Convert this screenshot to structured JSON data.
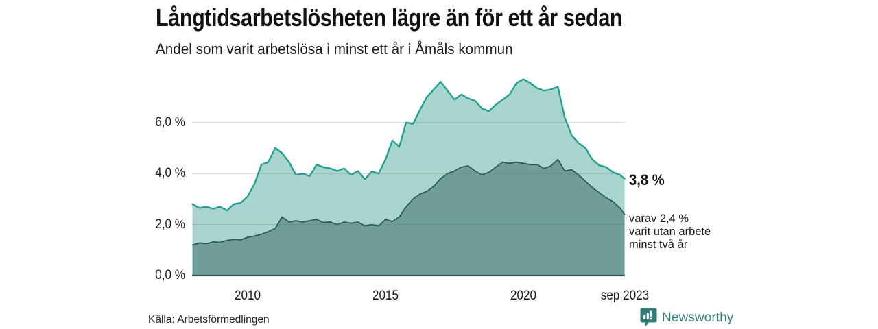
{
  "header": {
    "title": "Långtidsarbetslösheten lägre än för ett år sedan",
    "subtitle": "Andel som varit arbetslösa i minst ett år i Åmåls kommun"
  },
  "chart_data": {
    "type": "area",
    "title": "Långtidsarbetslösheten lägre än för ett år sedan",
    "subtitle": "Andel som varit arbetslösa i minst ett år i Åmåls kommun",
    "xlabel": "",
    "ylabel": "",
    "ylim": [
      0,
      7.8
    ],
    "grid": "horizontal",
    "legend_position": "none",
    "x_unit": "year",
    "x": [
      2008,
      2008.25,
      2008.5,
      2008.75,
      2009,
      2009.25,
      2009.5,
      2009.75,
      2010,
      2010.25,
      2010.5,
      2010.75,
      2011,
      2011.25,
      2011.5,
      2011.75,
      2012,
      2012.25,
      2012.5,
      2012.75,
      2013,
      2013.25,
      2013.5,
      2013.75,
      2014,
      2014.25,
      2014.5,
      2014.75,
      2015,
      2015.25,
      2015.5,
      2015.75,
      2016,
      2016.25,
      2016.5,
      2016.75,
      2017,
      2017.25,
      2017.5,
      2017.75,
      2018,
      2018.25,
      2018.5,
      2018.75,
      2019,
      2019.25,
      2019.5,
      2019.75,
      2020,
      2020.25,
      2020.5,
      2020.75,
      2021,
      2021.25,
      2021.5,
      2021.75,
      2022,
      2022.25,
      2022.5,
      2022.75,
      2023,
      2023.25,
      2023.5,
      2023.67
    ],
    "series": [
      {
        "name": "Andel arbetslösa minst ett år",
        "fill": "#a8d5ce",
        "stroke": "#21a090",
        "values": [
          2.8,
          2.65,
          2.7,
          2.62,
          2.7,
          2.55,
          2.8,
          2.85,
          3.1,
          3.6,
          4.35,
          4.45,
          5.0,
          4.8,
          4.45,
          3.95,
          4.0,
          3.9,
          4.35,
          4.25,
          4.2,
          4.1,
          4.2,
          3.95,
          4.1,
          3.78,
          4.08,
          4.0,
          4.55,
          5.3,
          5.05,
          6.0,
          5.95,
          6.5,
          7.0,
          7.3,
          7.6,
          7.25,
          6.9,
          7.1,
          6.95,
          6.85,
          6.55,
          6.45,
          6.7,
          6.9,
          7.1,
          7.55,
          7.7,
          7.55,
          7.35,
          7.25,
          7.3,
          7.4,
          6.2,
          5.5,
          5.2,
          5.0,
          4.55,
          4.32,
          4.25,
          4.05,
          3.95,
          3.8
        ]
      },
      {
        "name": "varav arbetslösa minst två år",
        "fill": "#6f9d98",
        "stroke": "#2d544f",
        "values": [
          1.2,
          1.28,
          1.25,
          1.32,
          1.3,
          1.38,
          1.42,
          1.4,
          1.5,
          1.55,
          1.62,
          1.72,
          1.85,
          2.3,
          2.1,
          2.15,
          2.1,
          2.15,
          2.2,
          2.08,
          2.1,
          2.0,
          2.1,
          2.05,
          2.1,
          1.95,
          2.0,
          1.95,
          2.2,
          2.12,
          2.3,
          2.7,
          3.0,
          3.2,
          3.3,
          3.5,
          3.8,
          4.0,
          4.1,
          4.25,
          4.3,
          4.1,
          3.95,
          4.05,
          4.25,
          4.45,
          4.4,
          4.45,
          4.4,
          4.35,
          4.35,
          4.2,
          4.3,
          4.55,
          4.1,
          4.15,
          3.95,
          3.7,
          3.45,
          3.25,
          3.05,
          2.9,
          2.65,
          2.4
        ]
      }
    ],
    "y_ticks": [
      {
        "value": 0,
        "label": "0,0 %"
      },
      {
        "value": 2,
        "label": "2,0 %"
      },
      {
        "value": 4,
        "label": "4,0 %"
      },
      {
        "value": 6,
        "label": "6,0 %"
      }
    ],
    "x_ticks": [
      {
        "value": 2010,
        "label": "2010"
      },
      {
        "value": 2015,
        "label": "2015"
      },
      {
        "value": 2020,
        "label": "2020"
      },
      {
        "value": 2023.67,
        "label": "sep 2023"
      }
    ],
    "y_gridlines": [
      2,
      4,
      6
    ],
    "annotations": {
      "latest_value": "3,8 %",
      "secondary_note": "varav 2,4 %\nvarit utan arbete\nminst två år"
    }
  },
  "footer": {
    "source": "Källa: Arbetsförmedlingen",
    "brand": {
      "name": "Newsworthy",
      "color": "#2e7d78"
    }
  }
}
